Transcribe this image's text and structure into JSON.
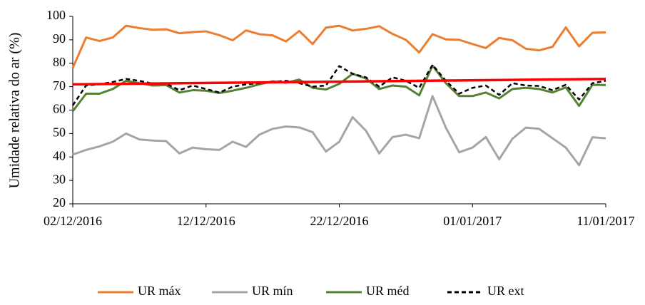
{
  "chart_data": {
    "type": "line",
    "y_label": "Umidade relativa do ar (%)",
    "categories": [
      "02/12/2016",
      null,
      null,
      null,
      null,
      null,
      null,
      null,
      null,
      null,
      "12/12/2016",
      null,
      null,
      null,
      null,
      null,
      null,
      null,
      null,
      null,
      "22/12/2016",
      null,
      null,
      null,
      null,
      null,
      null,
      null,
      null,
      null,
      "01/01/2017",
      null,
      null,
      null,
      null,
      null,
      null,
      null,
      null,
      null,
      "11/01/2017"
    ],
    "series": [
      {
        "name": "UR máx",
        "color": "#ed7d31",
        "dash": false,
        "values": [
          78,
          91,
          89.5,
          91,
          96,
          95,
          94.3,
          94.5,
          92.8,
          93.3,
          93.6,
          92,
          89.8,
          94,
          92.4,
          91.9,
          89.3,
          93.8,
          88.2,
          95.2,
          96,
          94,
          94.7,
          95.8,
          92.5,
          90,
          84.6,
          92.4,
          90.2,
          90,
          88.2,
          86.5,
          90.8,
          89.8,
          86.2,
          85.5,
          87,
          95.3,
          87.2,
          93,
          93.2
        ]
      },
      {
        "name": "UR mín",
        "color": "#a5a5a5",
        "dash": false,
        "values": [
          41,
          43,
          44.5,
          46.5,
          50,
          47.5,
          47,
          46.8,
          41.5,
          44,
          43.3,
          43,
          46.5,
          44.3,
          49.5,
          52,
          53,
          52.6,
          50.6,
          42.3,
          46.5,
          57,
          51.2,
          41.5,
          48.5,
          49.5,
          48,
          66,
          52.5,
          42,
          44,
          48.5,
          39,
          47.8,
          52.5,
          52,
          48,
          44,
          36.5,
          48.4,
          48
        ]
      },
      {
        "name": "UR méd",
        "color": "#548235",
        "dash": false,
        "values": [
          59.5,
          67,
          67,
          69,
          72.5,
          71.5,
          70.5,
          70.7,
          67.5,
          68.5,
          68.3,
          67.3,
          68.3,
          69.5,
          71,
          72.3,
          71.7,
          73,
          69.5,
          68.8,
          71.2,
          75.5,
          73.5,
          69,
          70.5,
          70,
          66.3,
          79,
          71.5,
          66,
          66,
          67.5,
          65,
          69,
          69.5,
          69,
          67.5,
          69.7,
          61.8,
          70.8,
          70.7
        ]
      },
      {
        "name": "UR ext",
        "color": "#000000",
        "dash": true,
        "values": [
          62,
          70.5,
          71,
          72,
          73.3,
          72.5,
          71.3,
          71.3,
          68.5,
          70.5,
          69,
          67.5,
          70,
          71,
          71.5,
          72,
          72.5,
          71.5,
          70,
          70.5,
          78.8,
          75.5,
          74,
          70,
          74,
          72.5,
          69.5,
          79.3,
          72.5,
          67,
          69.5,
          70.5,
          66.5,
          71.5,
          70.5,
          70.3,
          68.5,
          70.8,
          64.5,
          71.5,
          72.5
        ]
      }
    ],
    "trendline": {
      "color": "#ff0000",
      "values": [
        71,
        73.3
      ]
    },
    "ylim": [
      20,
      100
    ],
    "yticks": [
      20,
      30,
      40,
      50,
      60,
      70,
      80,
      90,
      100
    ],
    "legend": "bottom"
  }
}
